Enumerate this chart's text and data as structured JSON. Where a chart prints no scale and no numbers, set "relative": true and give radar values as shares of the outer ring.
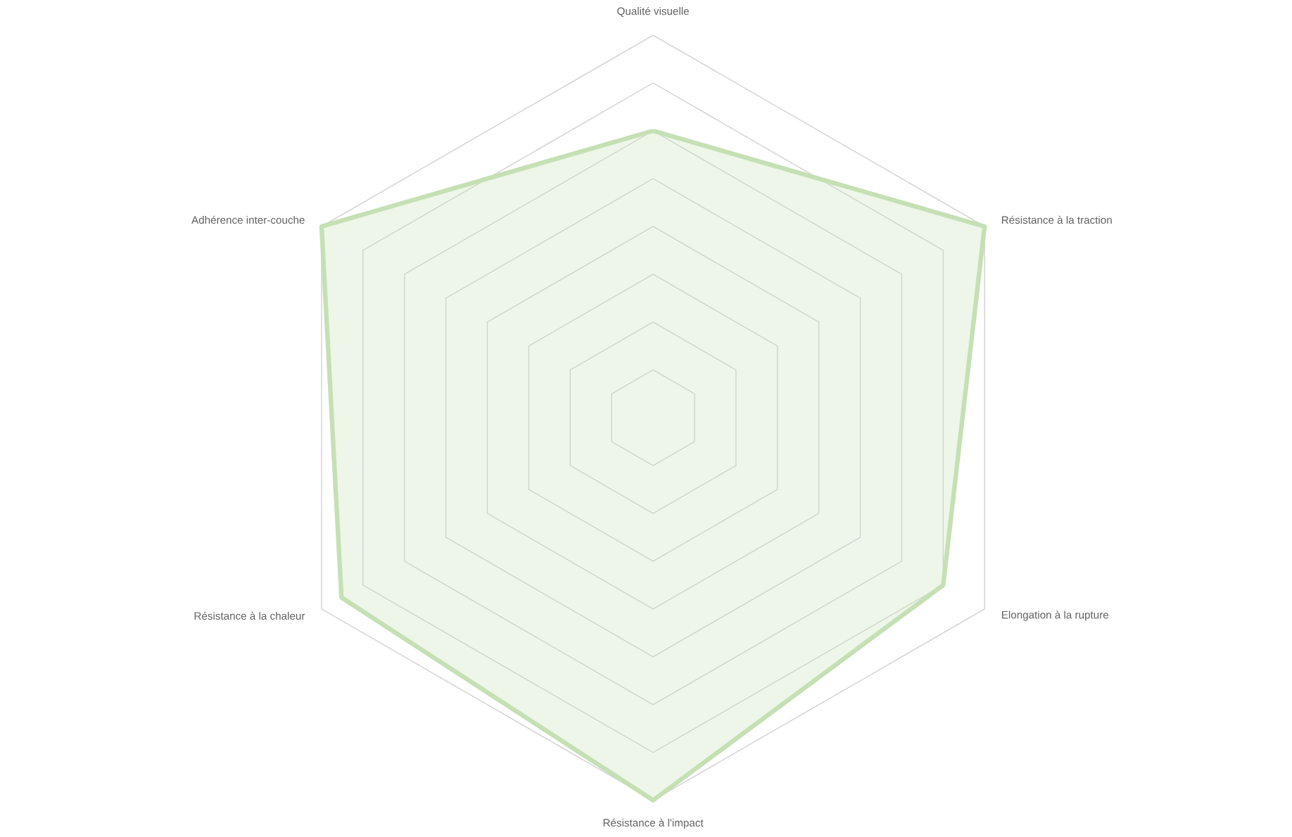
{
  "chart_data": {
    "type": "radar",
    "relative": true,
    "grid": true,
    "categories": [
      "Qualité visuelle",
      "Résistance à la traction",
      "Elongation à la rupture",
      "Résistance à l'impact",
      "Résistance à la chaleur",
      "Adhérence inter-couche"
    ],
    "series": [
      {
        "color": "#c5e0b4",
        "values": [
          0.75,
          1.0,
          0.875,
          1.0,
          0.94,
          1.0
        ]
      }
    ]
  }
}
